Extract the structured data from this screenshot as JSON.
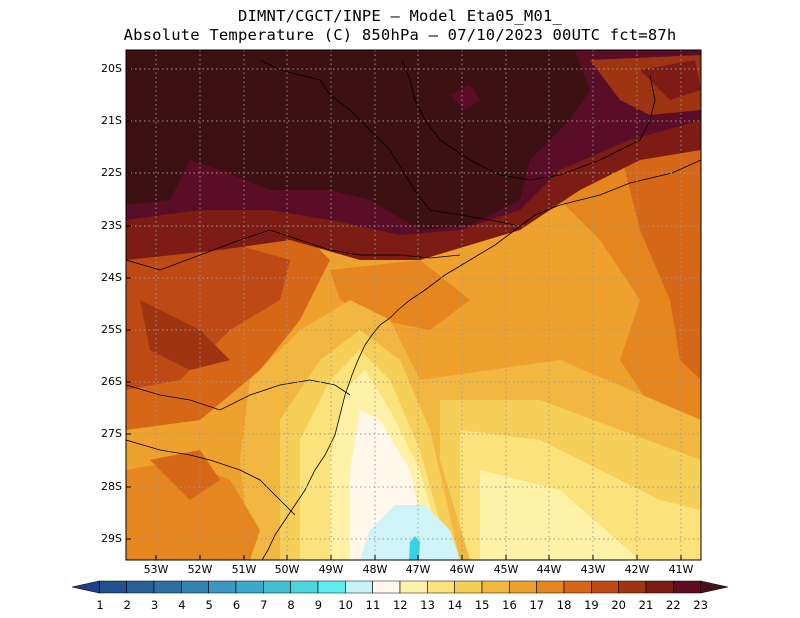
{
  "header": {
    "line1": "DIMNT/CGCT/INPE —  Model Eta05_M01_",
    "line2": "Absolute Temperature (C) 850hPa —  07/10/2023 00UTC fct=87h"
  },
  "axes": {
    "lat_labels": [
      "20S",
      "21S",
      "22S",
      "23S",
      "24S",
      "25S",
      "26S",
      "27S",
      "28S",
      "29S"
    ],
    "lon_labels": [
      "53W",
      "52W",
      "51W",
      "50W",
      "49W",
      "48W",
      "47W",
      "46W",
      "45W",
      "44W",
      "43W",
      "42W",
      "41W"
    ],
    "grid": "dotted"
  },
  "colorbar": {
    "labels": [
      "1",
      "2",
      "3",
      "4",
      "5",
      "6",
      "7",
      "8",
      "9",
      "10",
      "11",
      "12",
      "13",
      "14",
      "15",
      "16",
      "17",
      "18",
      "19",
      "20",
      "21",
      "22",
      "23"
    ],
    "colors": [
      "#1b3f8c",
      "#21508f",
      "#295f97",
      "#2d6fa3",
      "#3383b3",
      "#3a96c2",
      "#3aa9cb",
      "#42bfd4",
      "#4dd4df",
      "#5cedf3",
      "#c7f2f7",
      "#fff8ee",
      "#fff2a8",
      "#fbe27a",
      "#f5cf55",
      "#f1b73f",
      "#eea12d",
      "#e5861f",
      "#d66717",
      "#bd4a14",
      "#9e3411",
      "#7d1c14",
      "#600c1e",
      "#45101a"
    ]
  },
  "palette": {
    "cold": "#cff4f7",
    "cyan": "#33d6e0",
    "cream": "#fff7ea",
    "lightyellow": "#fff1a6",
    "yellow": "#fbe27a",
    "yellow2": "#f6cf58",
    "gold": "#f2b740",
    "orange1": "#eea12d",
    "orange2": "#e5861f",
    "orange3": "#d66717",
    "red1": "#bd4a14",
    "red2": "#9e3411",
    "maroon": "#7d1c14",
    "darkmaroon": "#5a0d26",
    "darkest": "#3d1014"
  }
}
